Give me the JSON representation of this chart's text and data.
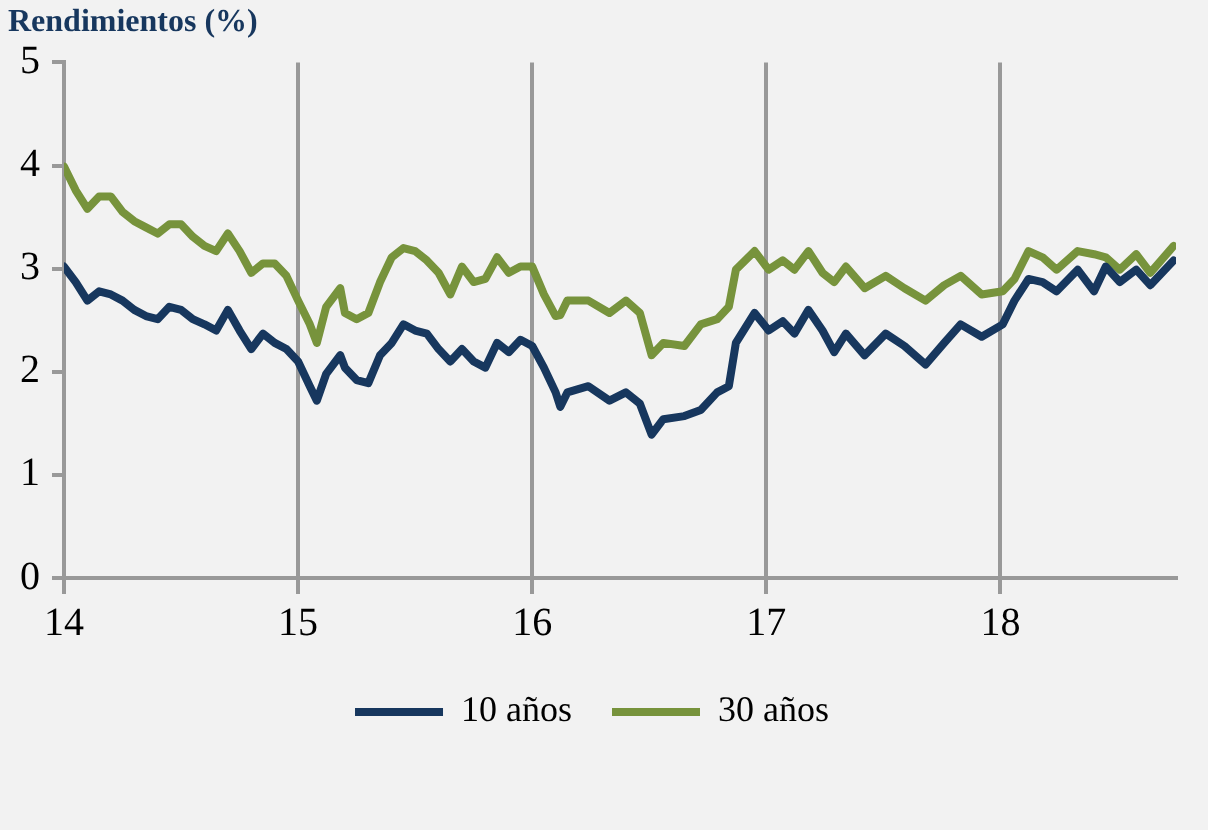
{
  "chart_data": {
    "type": "line",
    "title": "Rendimientos (%)",
    "x": [
      14.0,
      14.05,
      14.1,
      14.15,
      14.2,
      14.25,
      14.3,
      14.35,
      14.4,
      14.45,
      14.5,
      14.55,
      14.6,
      14.65,
      14.7,
      14.75,
      14.8,
      14.85,
      14.9,
      14.95,
      15.0,
      15.05,
      15.08,
      15.12,
      15.18,
      15.2,
      15.25,
      15.3,
      15.35,
      15.4,
      15.45,
      15.5,
      15.55,
      15.6,
      15.65,
      15.7,
      15.75,
      15.8,
      15.85,
      15.9,
      15.95,
      16.0,
      16.05,
      16.1,
      16.12,
      16.15,
      16.24,
      16.33,
      16.4,
      16.46,
      16.51,
      16.56,
      16.65,
      16.72,
      16.79,
      16.84,
      16.87,
      16.95,
      17.01,
      17.07,
      17.12,
      17.18,
      17.24,
      17.29,
      17.34,
      17.42,
      17.51,
      17.59,
      17.68,
      17.76,
      17.83,
      17.92,
      18.01,
      18.06,
      18.12,
      18.18,
      18.24,
      18.33,
      18.4,
      18.45,
      18.51,
      18.58,
      18.64,
      18.74
    ],
    "series": [
      {
        "name": "10 años",
        "color": "#17375e",
        "values": [
          3.02,
          2.87,
          2.69,
          2.78,
          2.75,
          2.69,
          2.6,
          2.54,
          2.51,
          2.63,
          2.6,
          2.51,
          2.46,
          2.4,
          2.6,
          2.4,
          2.22,
          2.37,
          2.28,
          2.22,
          2.1,
          1.86,
          1.72,
          1.98,
          2.16,
          2.04,
          1.92,
          1.89,
          2.16,
          2.28,
          2.46,
          2.4,
          2.37,
          2.22,
          2.1,
          2.22,
          2.1,
          2.04,
          2.28,
          2.19,
          2.31,
          2.25,
          2.04,
          1.8,
          1.66,
          1.8,
          1.86,
          1.72,
          1.8,
          1.69,
          1.39,
          1.54,
          1.57,
          1.63,
          1.8,
          1.86,
          2.28,
          2.57,
          2.4,
          2.49,
          2.37,
          2.6,
          2.4,
          2.19,
          2.37,
          2.16,
          2.37,
          2.25,
          2.07,
          2.28,
          2.46,
          2.34,
          2.46,
          2.69,
          2.9,
          2.87,
          2.78,
          2.99,
          2.78,
          3.02,
          2.87,
          2.99,
          2.84,
          3.08
        ]
      },
      {
        "name": "30 años",
        "color": "#77933c",
        "values": [
          3.99,
          3.76,
          3.58,
          3.7,
          3.7,
          3.55,
          3.46,
          3.4,
          3.34,
          3.43,
          3.43,
          3.31,
          3.22,
          3.17,
          3.34,
          3.17,
          2.96,
          3.05,
          3.05,
          2.93,
          2.69,
          2.46,
          2.28,
          2.63,
          2.81,
          2.57,
          2.51,
          2.57,
          2.87,
          3.11,
          3.2,
          3.17,
          3.08,
          2.96,
          2.75,
          3.02,
          2.87,
          2.9,
          3.11,
          2.96,
          3.02,
          3.02,
          2.75,
          2.54,
          2.55,
          2.69,
          2.69,
          2.57,
          2.69,
          2.57,
          2.16,
          2.28,
          2.25,
          2.46,
          2.51,
          2.63,
          2.99,
          3.17,
          2.99,
          3.08,
          2.99,
          3.17,
          2.96,
          2.87,
          3.02,
          2.81,
          2.93,
          2.81,
          2.69,
          2.84,
          2.93,
          2.75,
          2.78,
          2.9,
          3.17,
          3.11,
          2.99,
          3.17,
          3.14,
          3.11,
          2.99,
          3.14,
          2.96,
          3.22
        ]
      }
    ],
    "xlim": [
      14,
      18.75
    ],
    "xticks": [
      14,
      15,
      16,
      17,
      18
    ],
    "ylim": [
      0,
      5
    ],
    "yticks": [
      0,
      1,
      2,
      3,
      4,
      5
    ],
    "grid": "x",
    "legend": "bottom",
    "marker": "none",
    "line_style": "solid"
  }
}
